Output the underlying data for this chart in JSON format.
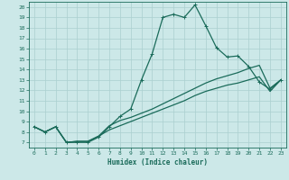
{
  "xlabel": "Humidex (Indice chaleur)",
  "bg_color": "#cce8e8",
  "grid_color": "#aacfcf",
  "line_color": "#1a6b5a",
  "xlim": [
    -0.5,
    23.5
  ],
  "ylim": [
    6.5,
    20.5
  ],
  "xticks": [
    0,
    1,
    2,
    3,
    4,
    5,
    6,
    7,
    8,
    9,
    10,
    11,
    12,
    13,
    14,
    15,
    16,
    17,
    18,
    19,
    20,
    21,
    22,
    23
  ],
  "yticks": [
    7,
    8,
    9,
    10,
    11,
    12,
    13,
    14,
    15,
    16,
    17,
    18,
    19,
    20
  ],
  "line1_x": [
    0,
    1,
    2,
    3,
    4,
    5,
    6,
    7,
    8,
    9,
    10,
    11,
    12,
    13,
    14,
    15,
    16,
    17,
    18,
    19,
    20,
    21,
    22,
    23
  ],
  "line1_y": [
    8.5,
    8.0,
    8.5,
    7.0,
    7.0,
    7.0,
    7.5,
    8.5,
    9.5,
    10.2,
    13.0,
    15.5,
    19.0,
    19.3,
    19.0,
    20.2,
    18.2,
    16.1,
    15.2,
    15.3,
    14.3,
    12.8,
    12.1,
    13.0
  ],
  "line2_x": [
    0,
    1,
    2,
    3,
    4,
    5,
    6,
    7,
    8,
    9,
    10,
    11,
    12,
    13,
    14,
    15,
    16,
    17,
    18,
    19,
    20,
    21,
    22,
    23
  ],
  "line2_y": [
    8.5,
    8.0,
    8.5,
    7.0,
    7.1,
    7.1,
    7.6,
    8.6,
    9.1,
    9.4,
    9.8,
    10.2,
    10.7,
    11.2,
    11.7,
    12.2,
    12.7,
    13.1,
    13.4,
    13.7,
    14.1,
    14.4,
    12.2,
    13.0
  ],
  "line3_x": [
    0,
    1,
    2,
    3,
    4,
    5,
    6,
    7,
    8,
    9,
    10,
    11,
    12,
    13,
    14,
    15,
    16,
    17,
    18,
    19,
    20,
    21,
    22,
    23
  ],
  "line3_y": [
    8.5,
    8.0,
    8.5,
    7.0,
    7.1,
    7.1,
    7.6,
    8.2,
    8.6,
    9.0,
    9.4,
    9.8,
    10.2,
    10.6,
    11.0,
    11.5,
    11.9,
    12.2,
    12.5,
    12.7,
    13.0,
    13.3,
    11.9,
    13.0
  ]
}
